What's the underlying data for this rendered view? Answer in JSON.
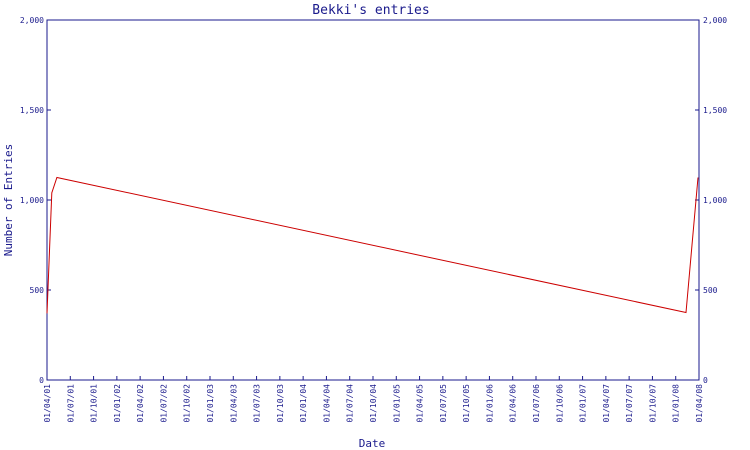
{
  "chart_data": {
    "type": "line",
    "title": "Bekki's entries",
    "xlabel": "Date",
    "ylabel": "Number of Entries",
    "ylim": [
      0,
      2000
    ],
    "y_ticks": [
      0,
      500,
      1000,
      1500,
      2000
    ],
    "y_tick_labels": [
      "0",
      "500",
      "1,000",
      "1,500",
      "2,000"
    ],
    "x_range": [
      "2001-04-01",
      "2008-04-01"
    ],
    "x_tick_labels": [
      "01/04/01",
      "01/07/01",
      "01/10/01",
      "01/01/02",
      "01/04/02",
      "01/07/02",
      "01/10/02",
      "01/01/03",
      "01/04/03",
      "01/07/03",
      "01/10/03",
      "01/01/04",
      "01/04/04",
      "01/07/04",
      "01/10/04",
      "01/01/05",
      "01/04/05",
      "01/07/05",
      "01/10/05",
      "01/01/06",
      "01/04/06",
      "01/07/06",
      "01/10/06",
      "01/01/07",
      "01/04/07",
      "01/07/07",
      "01/10/07",
      "01/01/08",
      "01/04/08"
    ],
    "grid": false,
    "series": [
      {
        "color": "#cc0000",
        "x": [
          "2001-04-01",
          "2001-04-20",
          "2001-05-10",
          "2008-02-10",
          "2008-03-28"
        ],
        "y": [
          370,
          1040,
          1125,
          375,
          1125
        ]
      }
    ]
  }
}
